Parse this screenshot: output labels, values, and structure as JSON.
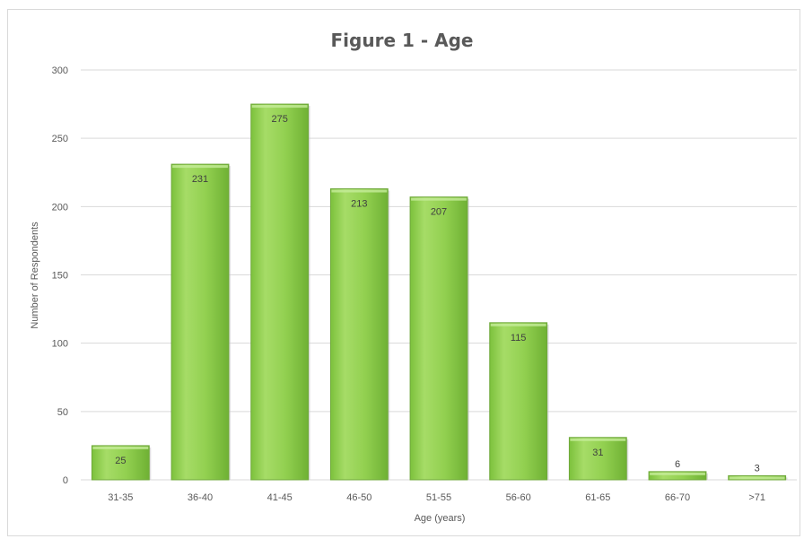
{
  "chart_data": {
    "type": "bar",
    "title": "Figure 1 - Age",
    "xlabel": "Age (years)",
    "ylabel": "Number of Respondents",
    "categories": [
      "31-35",
      "36-40",
      "41-45",
      "46-50",
      "51-55",
      "56-60",
      "61-65",
      "66-70",
      ">71"
    ],
    "values": [
      25,
      231,
      275,
      213,
      207,
      115,
      31,
      6,
      3
    ],
    "data_labels": [
      "25",
      "231",
      "275",
      "213",
      "207",
      "115",
      "31",
      "6",
      "3"
    ],
    "ylim": [
      0,
      300
    ],
    "yticks": [
      0,
      50,
      100,
      150,
      200,
      250,
      300
    ],
    "grid": true,
    "legend": "none",
    "bar_color": "#92d050",
    "bar_edge_color": "#6fa83a",
    "gridline_color": "#d9d9d9"
  }
}
